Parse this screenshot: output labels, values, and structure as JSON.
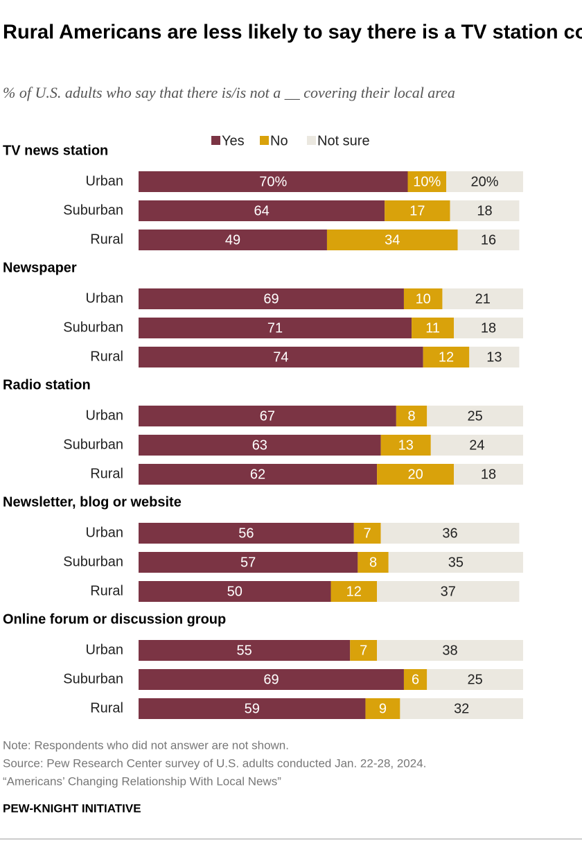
{
  "chart_data": {
    "type": "bar",
    "stacked": true,
    "title": "Rural Americans are less likely to say there is a TV station covering their area",
    "subtitle": "% of U.S. adults who say that there is/is not a __ covering their local area",
    "xlim": [
      0,
      100
    ],
    "legend": [
      {
        "name": "Yes",
        "color": "#7b3444"
      },
      {
        "name": "No",
        "color": "#d9a20b"
      },
      {
        "name": "Not sure",
        "color": "#ebe8e0"
      }
    ],
    "groups": [
      {
        "label": "TV news station",
        "categories": [
          "Urban",
          "Suburban",
          "Rural"
        ],
        "series": [
          {
            "values": [
              70,
              64,
              49
            ],
            "value_labels": [
              "70%",
              "64",
              "49"
            ]
          },
          {
            "values": [
              10,
              17,
              34
            ],
            "value_labels": [
              "10%",
              "17",
              "34"
            ]
          },
          {
            "values": [
              20,
              18,
              16
            ],
            "value_labels": [
              "20%",
              "18",
              "16"
            ]
          }
        ]
      },
      {
        "label": "Newspaper",
        "categories": [
          "Urban",
          "Suburban",
          "Rural"
        ],
        "series": [
          {
            "values": [
              69,
              71,
              74
            ]
          },
          {
            "values": [
              10,
              11,
              12
            ]
          },
          {
            "values": [
              21,
              18,
              13
            ]
          }
        ]
      },
      {
        "label": "Radio station",
        "categories": [
          "Urban",
          "Suburban",
          "Rural"
        ],
        "series": [
          {
            "values": [
              67,
              63,
              62
            ]
          },
          {
            "values": [
              8,
              13,
              20
            ]
          },
          {
            "values": [
              25,
              24,
              18
            ]
          }
        ]
      },
      {
        "label": "Newsletter, blog or website",
        "categories": [
          "Urban",
          "Suburban",
          "Rural"
        ],
        "series": [
          {
            "values": [
              56,
              57,
              50
            ]
          },
          {
            "values": [
              7,
              8,
              12
            ]
          },
          {
            "values": [
              36,
              35,
              37
            ]
          }
        ]
      },
      {
        "label": "Online forum or discussion group",
        "categories": [
          "Urban",
          "Suburban",
          "Rural"
        ],
        "series": [
          {
            "values": [
              55,
              69,
              59
            ]
          },
          {
            "values": [
              7,
              6,
              9
            ]
          },
          {
            "values": [
              38,
              25,
              32
            ]
          }
        ]
      }
    ],
    "note": "Note: Respondents who did not answer are not shown.",
    "source": "Source: Pew Research Center survey of U.S. adults conducted Jan. 22-28, 2024.",
    "source_title": "“Americans’ Changing Relationship With Local News”",
    "brand": "PEW-KNIGHT INITIATIVE"
  }
}
